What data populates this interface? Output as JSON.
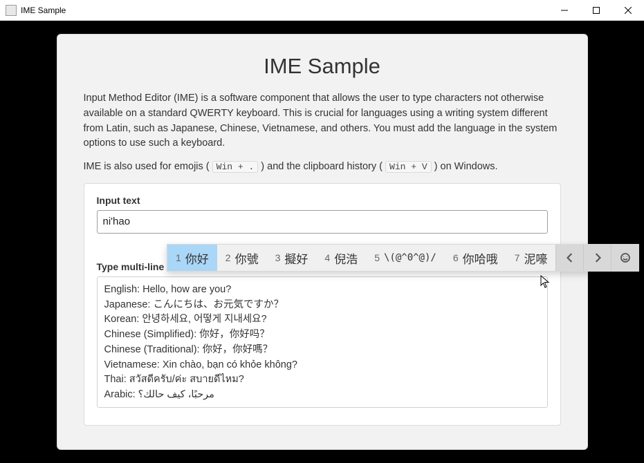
{
  "window": {
    "title": "IME Sample"
  },
  "card": {
    "heading": "IME Sample",
    "para1": "Input Method Editor (IME) is a software component that allows the user to type characters not otherwise available on a standard QWERTY keyboard. This is crucial for languages using a writing system different from Latin, such as Japanese, Chinese, Vietnamese, and others. You must add the language in the system options to use such a keyboard.",
    "para2_pre": "IME is also used for emojis (",
    "para2_kbd1": "Win + .",
    "para2_mid": ") and the clipboard history (",
    "para2_kbd2": "Win + V",
    "para2_post": ") on Windows."
  },
  "fields": {
    "single_label": "Input text",
    "single_value": "ni'hao",
    "multi_label": "Type multi-line text",
    "multi_value": "English: Hello, how are you?\nJapanese: こんにちは、お元気ですか？\nKorean: 안녕하세요, 어떻게 지내세요?\nChinese (Simplified): 你好，你好吗？\nChinese (Traditional): 你好，你好嗎？\nVietnamese: Xin chào, bạn có khỏe không?\nThai: สวัสดีครับ/ค่ะ สบายดีไหม?\nArabic: مرحبًا، كيف حالك؟"
  },
  "ime": {
    "candidates": [
      {
        "n": "1",
        "t": "你好",
        "selected": true
      },
      {
        "n": "2",
        "t": "你號"
      },
      {
        "n": "3",
        "t": "擬好"
      },
      {
        "n": "4",
        "t": "倪浩"
      },
      {
        "n": "5",
        "t": "\\(@^0^@)/",
        "ascii": true
      },
      {
        "n": "6",
        "t": "你哈哦"
      },
      {
        "n": "7",
        "t": "泥嚎"
      }
    ]
  }
}
